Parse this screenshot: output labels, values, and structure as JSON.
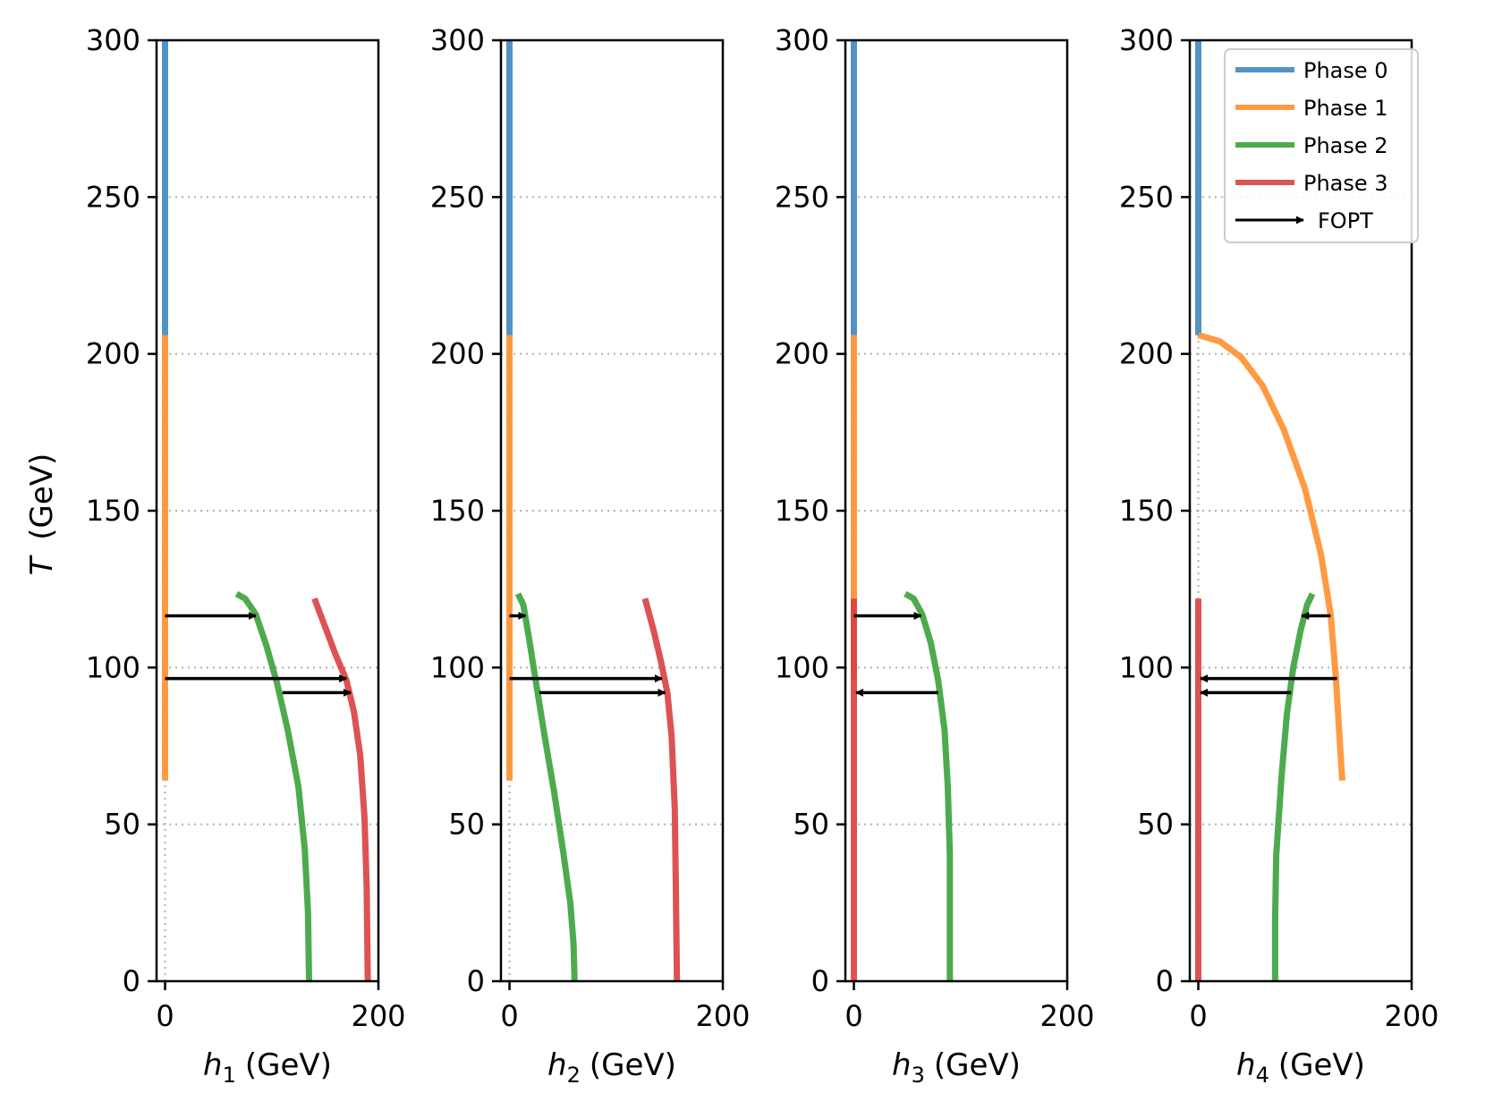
{
  "chart_data": {
    "type": "line",
    "ylabel_symbol": "T",
    "ylabel_unit": "(GeV)",
    "ylim": [
      0,
      300
    ],
    "xlim": [
      -8,
      200
    ],
    "yticks": [
      0,
      50,
      100,
      150,
      200,
      250,
      300
    ],
    "xticks": [
      0,
      200
    ],
    "grid": "horizontal dotted",
    "legend": {
      "placement": "top-right of last panel",
      "entries": [
        {
          "label": "Phase 0",
          "color": "#3f88c0"
        },
        {
          "label": "Phase 1",
          "color": "#ff8f2e"
        },
        {
          "label": "Phase 2",
          "color": "#3aa23a"
        },
        {
          "label": "Phase 3",
          "color": "#d93f40"
        },
        {
          "label": "FOPT",
          "color": "#000000",
          "marker": "arrow"
        }
      ]
    },
    "panels": [
      {
        "xsym": "h",
        "xsub": "1",
        "xunit": "(GeV)",
        "series": [
          {
            "name": "Phase 0",
            "color": "#3f88c0",
            "points": [
              [
                0,
                300
              ],
              [
                0,
                206
              ]
            ]
          },
          {
            "name": "Phase 1",
            "color": "#ff8f2e",
            "points": [
              [
                0,
                206
              ],
              [
                0,
                64
              ]
            ]
          },
          {
            "name": "Phase 2",
            "color": "#3aa23a",
            "points": [
              [
                67,
                123.5
              ],
              [
                75,
                122
              ],
              [
                85,
                117
              ],
              [
                95,
                107
              ],
              [
                105,
                95
              ],
              [
                115,
                80
              ],
              [
                125,
                62
              ],
              [
                131,
                42
              ],
              [
                134,
                22
              ],
              [
                135,
                0
              ]
            ]
          },
          {
            "name": "Phase 3",
            "color": "#d93f40",
            "points": [
              [
                140,
                122
              ],
              [
                150,
                113
              ],
              [
                160,
                104
              ],
              [
                170,
                96
              ],
              [
                177,
                86
              ],
              [
                183,
                72
              ],
              [
                187,
                52
              ],
              [
                189,
                30
              ],
              [
                190,
                0
              ]
            ]
          }
        ],
        "fopt": [
          {
            "from": [
              0,
              116.5
            ],
            "to": [
              85,
              116.5
            ]
          },
          {
            "from": [
              0,
              96.5
            ],
            "to": [
              170,
              96.5
            ]
          },
          {
            "from": [
              110,
              92
            ],
            "to": [
              174,
              92
            ]
          }
        ]
      },
      {
        "xsym": "h",
        "xsub": "2",
        "xunit": "(GeV)",
        "series": [
          {
            "name": "Phase 0",
            "color": "#3f88c0",
            "points": [
              [
                0,
                300
              ],
              [
                0,
                206
              ]
            ]
          },
          {
            "name": "Phase 1",
            "color": "#ff8f2e",
            "points": [
              [
                0,
                206
              ],
              [
                0,
                64
              ]
            ]
          },
          {
            "name": "Phase 2",
            "color": "#3aa23a",
            "points": [
              [
                8,
                123.5
              ],
              [
                13,
                120
              ],
              [
                18,
                110
              ],
              [
                25,
                95
              ],
              [
                33,
                78
              ],
              [
                42,
                60
              ],
              [
                50,
                42
              ],
              [
                57,
                25
              ],
              [
                60,
                12
              ],
              [
                61,
                0
              ]
            ]
          },
          {
            "name": "Phase 3",
            "color": "#d93f40",
            "points": [
              [
                127,
                122
              ],
              [
                135,
                112
              ],
              [
                142,
                102
              ],
              [
                148,
                92
              ],
              [
                152,
                78
              ],
              [
                155,
                55
              ],
              [
                156,
                30
              ],
              [
                157,
                0
              ]
            ]
          }
        ],
        "fopt": [
          {
            "from": [
              0,
              116.5
            ],
            "to": [
              15,
              116.5
            ]
          },
          {
            "from": [
              0,
              96.5
            ],
            "to": [
              143,
              96.5
            ]
          },
          {
            "from": [
              28,
              92
            ],
            "to": [
              146,
              92
            ]
          }
        ]
      },
      {
        "xsym": "h",
        "xsub": "3",
        "xunit": "(GeV)",
        "series": [
          {
            "name": "Phase 0",
            "color": "#3f88c0",
            "points": [
              [
                0,
                300
              ],
              [
                0,
                206
              ]
            ]
          },
          {
            "name": "Phase 1",
            "color": "#ff8f2e",
            "points": [
              [
                0,
                206
              ],
              [
                0,
                96
              ]
            ]
          },
          {
            "name": "Phase 2",
            "color": "#3aa23a",
            "points": [
              [
                48,
                123.5
              ],
              [
                56,
                122
              ],
              [
                64,
                117
              ],
              [
                72,
                108
              ],
              [
                79,
                96
              ],
              [
                85,
                80
              ],
              [
                88,
                62
              ],
              [
                90,
                40
              ],
              [
                90,
                20
              ],
              [
                90,
                0
              ]
            ]
          },
          {
            "name": "Phase 3",
            "color": "#d93f40",
            "points": [
              [
                0,
                122
              ],
              [
                0,
                0
              ]
            ]
          }
        ],
        "fopt": [
          {
            "from": [
              0,
              116.5
            ],
            "to": [
              63,
              116.5
            ]
          },
          {
            "from": [
              79,
              92
            ],
            "to": [
              2,
              92
            ]
          }
        ]
      },
      {
        "xsym": "h",
        "xsub": "4",
        "xunit": "(GeV)",
        "series": [
          {
            "name": "Phase 0",
            "color": "#3f88c0",
            "points": [
              [
                0,
                300
              ],
              [
                0,
                206
              ]
            ]
          },
          {
            "name": "Phase 1",
            "color": "#ff8f2e",
            "points": [
              [
                0,
                206
              ],
              [
                20,
                204
              ],
              [
                40,
                199
              ],
              [
                60,
                190
              ],
              [
                80,
                176
              ],
              [
                100,
                157
              ],
              [
                115,
                136
              ],
              [
                124,
                117
              ],
              [
                129,
                97
              ],
              [
                132,
                80
              ],
              [
                135,
                64
              ]
            ]
          },
          {
            "name": "Phase 2",
            "color": "#3aa23a",
            "points": [
              [
                107,
                123.5
              ],
              [
                102,
                120
              ],
              [
                96,
                112
              ],
              [
                89,
                100
              ],
              [
                83,
                85
              ],
              [
                78,
                65
              ],
              [
                73,
                40
              ],
              [
                72,
                20
              ],
              [
                72,
                0
              ]
            ]
          },
          {
            "name": "Phase 3",
            "color": "#d93f40",
            "points": [
              [
                0,
                122
              ],
              [
                0,
                0
              ]
            ]
          }
        ],
        "fopt": [
          {
            "from": [
              124,
              116.5
            ],
            "to": [
              97,
              116.5
            ]
          },
          {
            "from": [
              130,
              96.5
            ],
            "to": [
              2,
              96.5
            ]
          },
          {
            "from": [
              87,
              92
            ],
            "to": [
              2,
              92
            ]
          }
        ]
      }
    ]
  }
}
